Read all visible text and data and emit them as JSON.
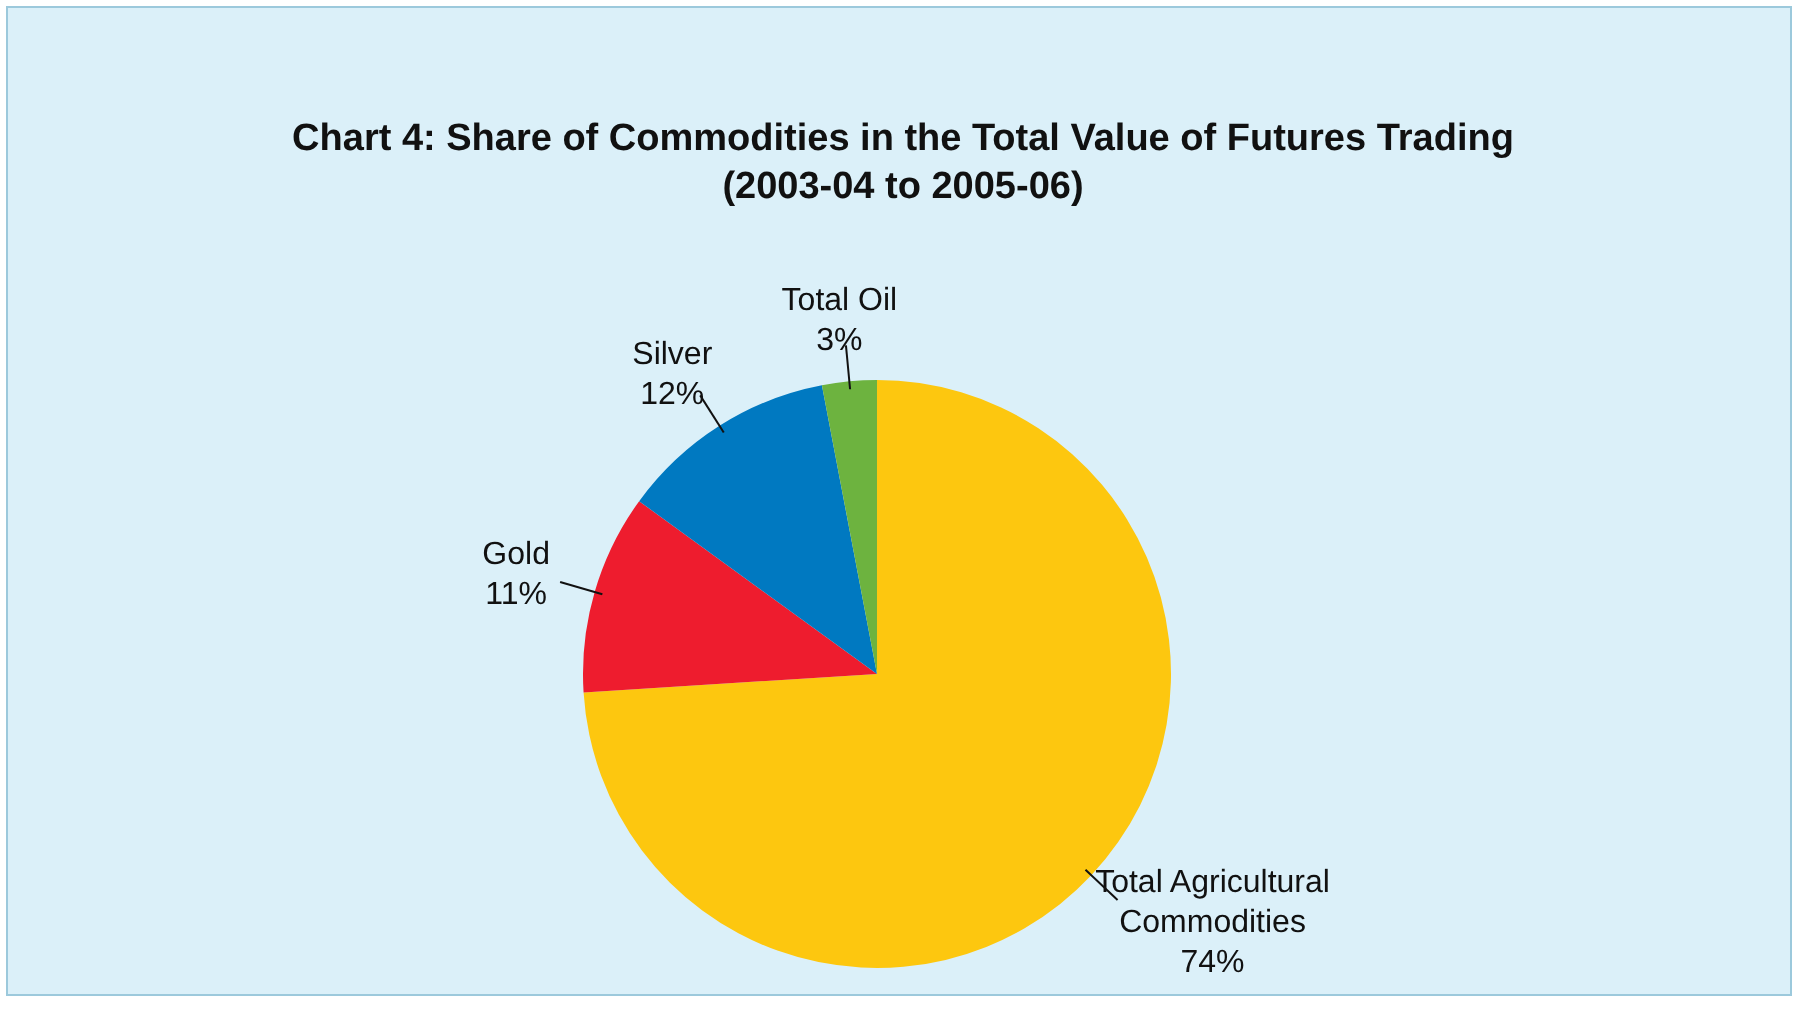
{
  "chart_data": {
    "type": "pie",
    "title": "Chart 4: Share of Commodities in the Total Value of Futures Trading",
    "subtitle": "(2003-04 to 2005-06)",
    "categories": [
      "Total Agricultural Commodities",
      "Gold",
      "Silver",
      "Total Oil"
    ],
    "values": [
      74,
      11,
      12,
      3
    ],
    "colors": [
      "#fdc70f",
      "#ee1c2e",
      "#0079c1",
      "#6db33f"
    ],
    "value_labels": [
      "74%",
      "11%",
      "12%",
      "3%"
    ],
    "legend": false
  }
}
